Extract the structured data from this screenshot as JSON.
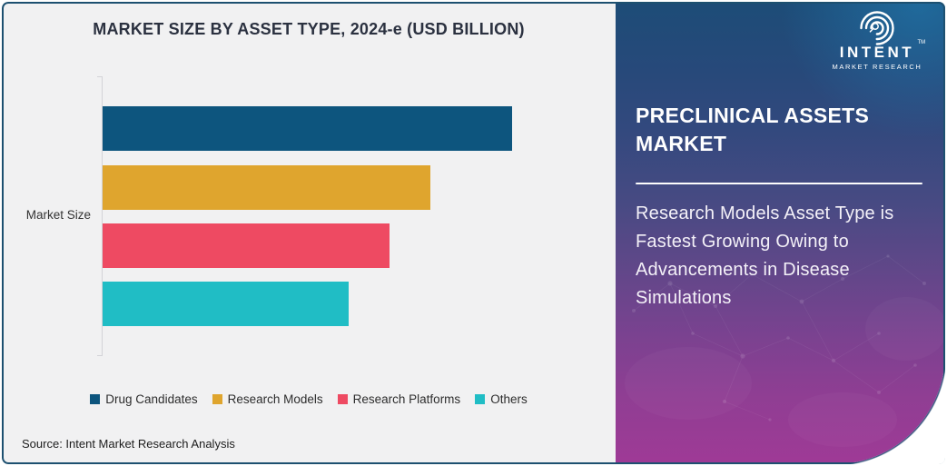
{
  "chart": {
    "source": "Source: Intent Market Research Analysis"
  },
  "chart_data": {
    "type": "bar",
    "orientation": "horizontal",
    "title": "MARKET SIZE BY ASSET TYPE, 2024-e (USD BILLION)",
    "ylabel": "Market Size",
    "categories": [
      "Drug Candidates",
      "Research Models",
      "Research Platforms",
      "Others"
    ],
    "values": [
      100,
      80,
      70,
      60
    ],
    "colors": [
      "#0d557e",
      "#dfa52e",
      "#ee4a62",
      "#20bdc5"
    ],
    "xlim": [
      0,
      121
    ],
    "grid": false,
    "value_labels_shown": false,
    "legend_position": "bottom"
  },
  "panel": {
    "heading": "PRECLINICAL ASSETS\nMARKET",
    "subheading": "Research Models Asset Type is\nFastest Growing Owing to\nAdvancements in Disease\nSimulations",
    "logo": {
      "name": "INTENT",
      "tm": "TM",
      "tagline": "MARKET RESEARCH"
    }
  },
  "colors": {
    "card_border": "#1d5070",
    "chart_background": "#f1f1f2",
    "panel_gradient_top": "#1d4c77",
    "panel_gradient_bottom": "#9f3a96",
    "title_text": "#2b3140"
  }
}
